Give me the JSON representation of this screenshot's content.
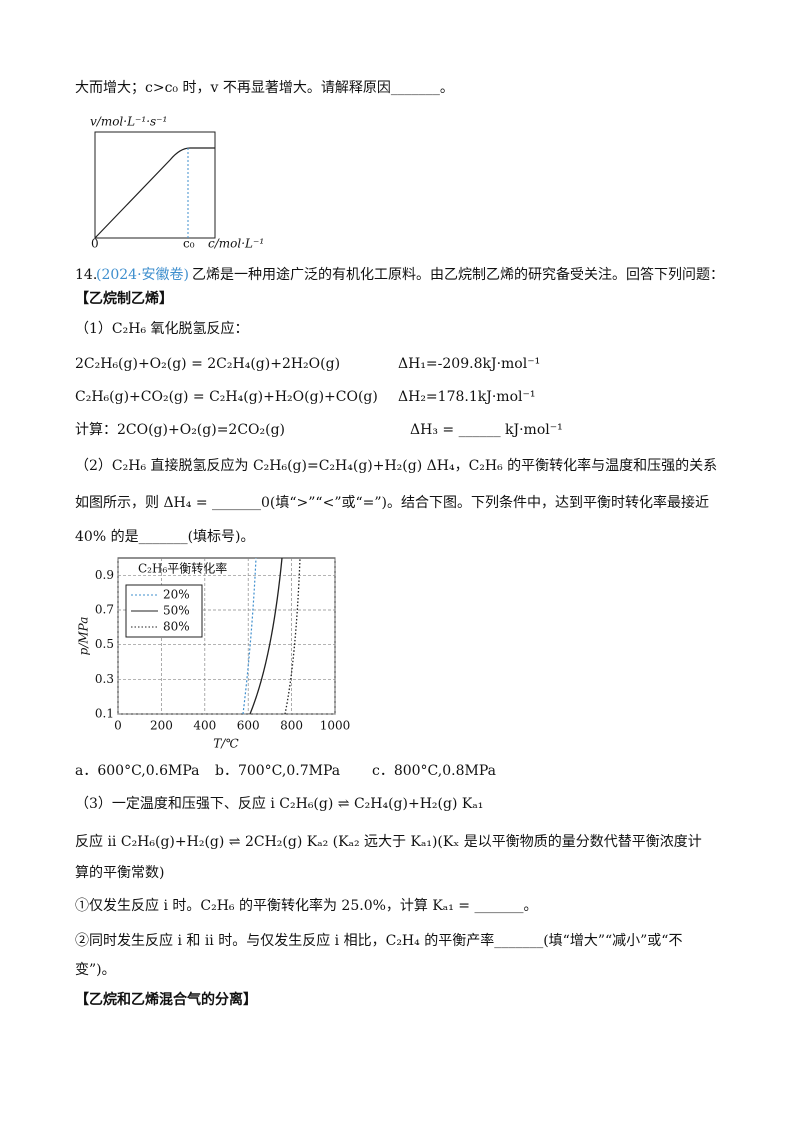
{
  "text": {
    "line_top": "大而增大；c>c₀ 时，v 不再显著增大。请解释原因_______。",
    "q_number": "14.",
    "q_source": "(2024·安徽卷)",
    "q_intro": "乙烯是一种用途广泛的有机化工原料。由乙烷制乙烯的研究备受关注。回答下列问题：",
    "section1": "【乙烷制乙烯】",
    "p1": "（1）C₂H₆ 氧化脱氢反应：",
    "eq1": "2C₂H₆(g)+O₂(g) = 2C₂H₄(g)+2H₂O(g)",
    "dh1": "ΔH₁=-209.8kJ·mol⁻¹",
    "eq2": "C₂H₆(g)+CO₂(g) = C₂H₄(g)+H₂O(g)+CO(g)",
    "dh2": "ΔH₂=178.1kJ·mol⁻¹",
    "eq3": "计算：2CO(g)+O₂(g)=2CO₂(g)",
    "dh3": "ΔH₃ = ______ kJ·mol⁻¹",
    "p2a": "（2）C₂H₆ 直接脱氢反应为 C₂H₆(g)=C₂H₄(g)+H₂(g)   ΔH₄，C₂H₆ 的平衡转化率与温度和压强的关系",
    "p2b": "如图所示，则 ΔH₄ = _______0(填“>”“<”或“=”)。结合下图。下列条件中，达到平衡时转化率最接近",
    "p2c": "40% 的是_______(填标号)。",
    "opt_a": "a．600°C,0.6MPa",
    "opt_b": "b．700°C,0.7MPa",
    "opt_c": "c．800°C,0.8MPa",
    "p3a": "（3）一定温度和压强下、反应 i   C₂H₆(g) ⇌ C₂H₄(g)+H₂(g)    Kₐ₁",
    "p3b": "反应 ii   C₂H₆(g)+H₂(g) ⇌ 2CH₂(g)    Kₐ₂ (Kₐ₂ 远大于 Kₐ₁)(Kₓ 是以平衡物质的量分数代替平衡浓度计",
    "p3c": "算的平衡常数)",
    "p3d": "①仅发生反应 i 时。C₂H₆ 的平衡转化率为 25.0%，计算 Kₐ₁ = _______。",
    "p3e": "②同时发生反应 i 和 ii 时。与仅发生反应 i 相比，C₂H₄ 的平衡产率_______(填“增大”“减小”或“不",
    "p3f": "变”)。",
    "section2": "【乙烷和乙烯混合气的分离】"
  },
  "figure1": {
    "y_label": "v/mol·L⁻¹·s⁻¹",
    "origin": "0",
    "c0": "c₀",
    "x_label": "c/mol·L⁻¹"
  },
  "figure2": {
    "title": "C₂H₆平衡转化率",
    "legend": [
      "20%",
      "50%",
      "80%"
    ],
    "y_label": "p/MPa",
    "x_label": "T/℃",
    "xlim": [
      0,
      1000
    ],
    "ylim": [
      0.1,
      1.0
    ],
    "xticks": [
      0,
      200,
      400,
      600,
      800,
      1000
    ],
    "yticks": [
      0.1,
      0.3,
      0.5,
      0.7,
      0.9
    ]
  }
}
